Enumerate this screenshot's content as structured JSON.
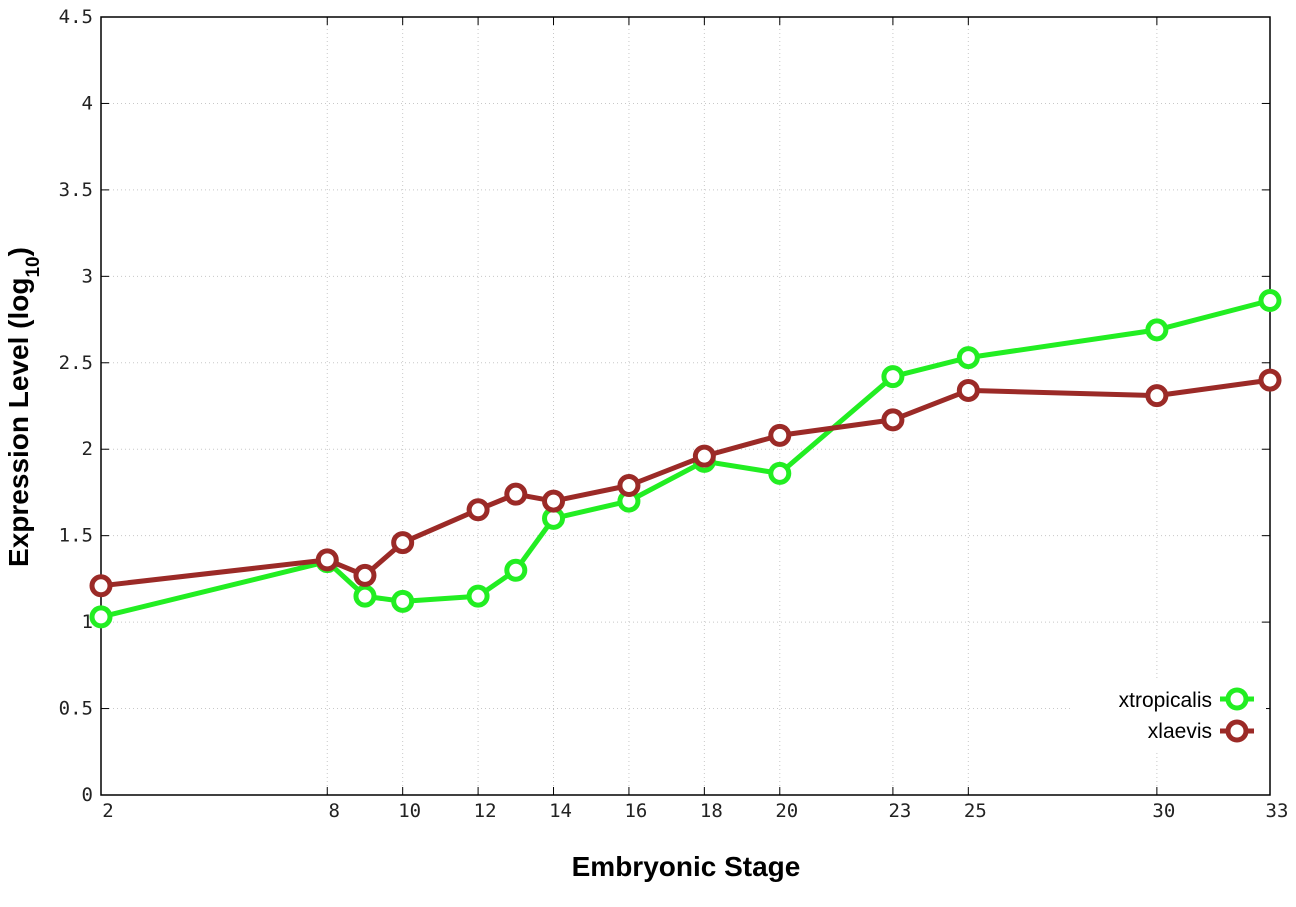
{
  "chart_data": {
    "type": "line",
    "xlabel": "Embryonic Stage",
    "ylabel": {
      "main": "Expression Level (log",
      "sub": "10",
      "close": ")"
    },
    "x_ticks": [
      "2",
      "8",
      "10",
      "12",
      "14",
      "16",
      "18",
      "20",
      "23",
      "25",
      "30",
      "33"
    ],
    "y_ticks": [
      "0",
      "0.5",
      "1",
      "1.5",
      "2",
      "2.5",
      "3",
      "3.5",
      "4",
      "4.5"
    ],
    "ylim": [
      0,
      4.5
    ],
    "grid": true,
    "legend_position": "bottom-right",
    "series": [
      {
        "name": "xtropicalis",
        "color": "#22ee22",
        "points": [
          {
            "x": 2,
            "y": 1.03
          },
          {
            "x": 8,
            "y": 1.35
          },
          {
            "x": 9,
            "y": 1.15
          },
          {
            "x": 10,
            "y": 1.12
          },
          {
            "x": 12,
            "y": 1.15
          },
          {
            "x": 13,
            "y": 1.3
          },
          {
            "x": 14,
            "y": 1.6
          },
          {
            "x": 16,
            "y": 1.7
          },
          {
            "x": 18,
            "y": 1.93
          },
          {
            "x": 20,
            "y": 1.86
          },
          {
            "x": 23,
            "y": 2.42
          },
          {
            "x": 25,
            "y": 2.53
          },
          {
            "x": 30,
            "y": 2.69
          },
          {
            "x": 33,
            "y": 2.86
          }
        ]
      },
      {
        "name": "xlaevis",
        "color": "#9b2a27",
        "points": [
          {
            "x": 2,
            "y": 1.21
          },
          {
            "x": 8,
            "y": 1.36
          },
          {
            "x": 9,
            "y": 1.27
          },
          {
            "x": 10,
            "y": 1.46
          },
          {
            "x": 12,
            "y": 1.65
          },
          {
            "x": 13,
            "y": 1.74
          },
          {
            "x": 14,
            "y": 1.7
          },
          {
            "x": 16,
            "y": 1.79
          },
          {
            "x": 18,
            "y": 1.96
          },
          {
            "x": 20,
            "y": 2.08
          },
          {
            "x": 23,
            "y": 2.17
          },
          {
            "x": 25,
            "y": 2.34
          },
          {
            "x": 30,
            "y": 2.31
          },
          {
            "x": 33,
            "y": 2.4
          }
        ]
      }
    ]
  }
}
